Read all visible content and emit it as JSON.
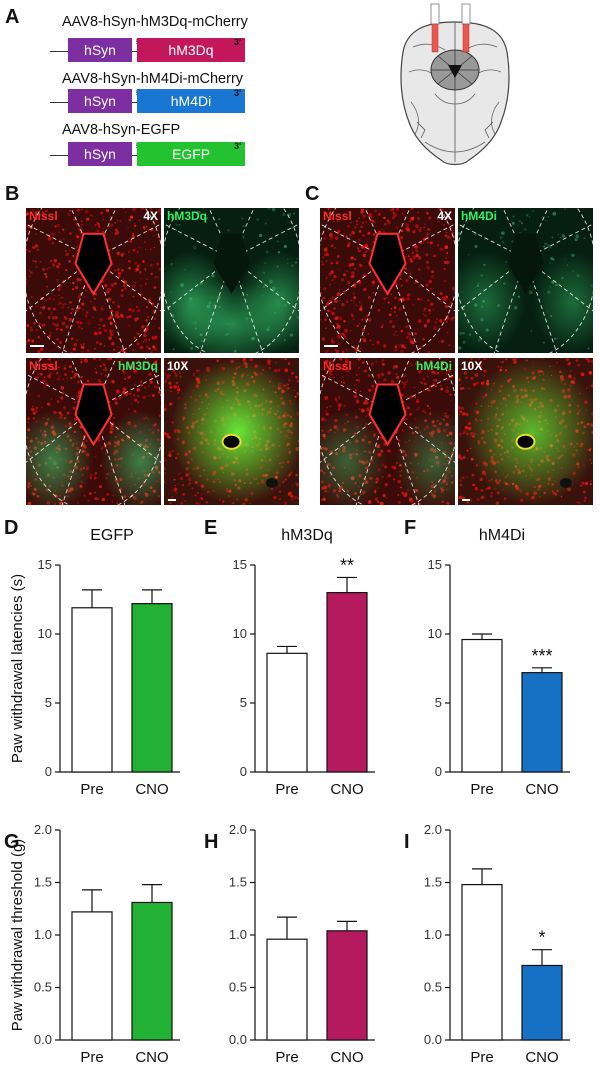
{
  "panels": {
    "A": {
      "letter": "A",
      "constructs": [
        {
          "name": "AAV8-hSyn-hM3Dq-mCherry",
          "promoter": "hSyn",
          "gene": "hM3Dq",
          "five": "5'",
          "three": "3'",
          "color": "#c2185b"
        },
        {
          "name": "AAV8-hSyn-hM4Di-mCherry",
          "promoter": "hSyn",
          "gene": "hM4Di",
          "five": "5'",
          "three": "3'",
          "color": "#1976d2"
        },
        {
          "name": "AAV8-hSyn-EGFP",
          "promoter": "hSyn",
          "gene": "EGFP",
          "five": "5'",
          "three": "3'",
          "color": "#22c32e"
        }
      ],
      "promoter_color": "#7b2fa0"
    },
    "B": {
      "letter": "B",
      "images": [
        {
          "label": "Nissl",
          "label2": "4X",
          "kind": "nissl"
        },
        {
          "label": "hM3Dq",
          "kind": "green"
        },
        {
          "label": "Nissl",
          "label2": "hM3Dq",
          "kind": "merge"
        },
        {
          "label": "10X",
          "kind": "zoom"
        }
      ]
    },
    "C": {
      "letter": "C",
      "images": [
        {
          "label": "Nissl",
          "label2": "4X",
          "kind": "nissl"
        },
        {
          "label": "hM4Di",
          "kind": "green"
        },
        {
          "label": "Nissl",
          "label2": "hM4Di",
          "kind": "merge"
        },
        {
          "label": "10X",
          "kind": "zoom"
        }
      ]
    }
  },
  "chart_data": [
    {
      "panel": "D",
      "type": "bar",
      "title": "EGFP",
      "ylabel": "Paw withdrawal latencies (s)",
      "categories": [
        "Pre",
        "CNO"
      ],
      "values": [
        11.9,
        12.2
      ],
      "errors": [
        1.3,
        1.0
      ],
      "colors": [
        "#ffffff",
        "#22b035"
      ],
      "ylim": [
        0,
        15
      ],
      "yticks": [
        "0",
        "5",
        "10",
        "15"
      ],
      "significance": ""
    },
    {
      "panel": "E",
      "type": "bar",
      "title": "hM3Dq",
      "ylabel": "",
      "categories": [
        "Pre",
        "CNO"
      ],
      "values": [
        8.6,
        13.0
      ],
      "errors": [
        0.5,
        1.1
      ],
      "colors": [
        "#ffffff",
        "#b5195e"
      ],
      "ylim": [
        0,
        15
      ],
      "yticks": [
        "0",
        "5",
        "10",
        "15"
      ],
      "significance": "**"
    },
    {
      "panel": "F",
      "type": "bar",
      "title": "hM4Di",
      "ylabel": "",
      "categories": [
        "Pre",
        "CNO"
      ],
      "values": [
        9.6,
        7.2
      ],
      "errors": [
        0.4,
        0.35
      ],
      "colors": [
        "#ffffff",
        "#1670c4"
      ],
      "ylim": [
        0,
        15
      ],
      "yticks": [
        "0",
        "5",
        "10",
        "15"
      ],
      "significance": "***"
    },
    {
      "panel": "G",
      "type": "bar",
      "title": "",
      "ylabel": "Paw withdrawal threshold (g)",
      "categories": [
        "Pre",
        "CNO"
      ],
      "values": [
        1.22,
        1.31
      ],
      "errors": [
        0.21,
        0.17
      ],
      "colors": [
        "#ffffff",
        "#22b035"
      ],
      "ylim": [
        0,
        2.0
      ],
      "yticks": [
        "0.0",
        "0.5",
        "1.0",
        "1.5",
        "2.0"
      ],
      "significance": ""
    },
    {
      "panel": "H",
      "type": "bar",
      "title": "",
      "ylabel": "",
      "categories": [
        "Pre",
        "CNO"
      ],
      "values": [
        0.96,
        1.04
      ],
      "errors": [
        0.21,
        0.09
      ],
      "colors": [
        "#ffffff",
        "#b5195e"
      ],
      "ylim": [
        0,
        2.0
      ],
      "yticks": [
        "0.0",
        "0.5",
        "1.0",
        "1.5",
        "2.0"
      ],
      "significance": ""
    },
    {
      "panel": "I",
      "type": "bar",
      "title": "",
      "ylabel": "",
      "categories": [
        "Pre",
        "CNO"
      ],
      "values": [
        1.48,
        0.71
      ],
      "errors": [
        0.15,
        0.15
      ],
      "colors": [
        "#ffffff",
        "#1670c4"
      ],
      "ylim": [
        0,
        2.0
      ],
      "yticks": [
        "0.0",
        "0.5",
        "1.0",
        "1.5",
        "2.0"
      ],
      "significance": "*"
    }
  ]
}
